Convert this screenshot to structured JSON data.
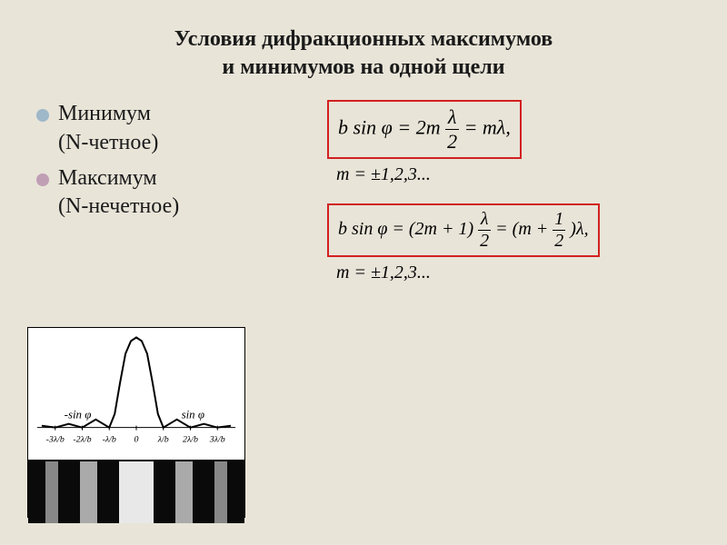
{
  "title": {
    "line1": "Условия дифракционных максимумов",
    "line2": "и минимумов на одной щели",
    "fontsize": 24,
    "color": "#1a1a1a"
  },
  "bullets": [
    {
      "text1": "Минимум",
      "text2": "(N-четное)",
      "color": "#9fb8c9"
    },
    {
      "text1": "Максимум",
      "text2": "(N-нечетное)",
      "color": "#c09fb5"
    }
  ],
  "bullet_fontsize": 24,
  "formulas": {
    "box1": {
      "prefix": "b sin φ = 2m",
      "frac_num": "λ",
      "frac_den": "2",
      "suffix": " = mλ,",
      "border_color": "#d32020",
      "fontsize": 22
    },
    "m1": {
      "text": "m = ±1,2,3...",
      "fontsize": 20
    },
    "box2": {
      "prefix": "b sin φ = (2m + 1)",
      "frac1_num": "λ",
      "frac1_den": "2",
      "mid": " = (m + ",
      "frac2_num": "1",
      "frac2_den": "2",
      "suffix": ")λ,",
      "border_color": "#d32020",
      "fontsize": 20
    },
    "m2": {
      "text": "m = ±1,2,3...",
      "fontsize": 20
    }
  },
  "diagram": {
    "type": "line",
    "background_color": "#ffffff",
    "axis_labels_left": "-sin φ",
    "axis_labels_right": "sin φ",
    "x_ticks": [
      "-3λ/b",
      "-2λ/b",
      "-λ/b",
      "0",
      "λ/b",
      "2λ/b",
      "3λ/b"
    ],
    "curve_color": "#000000",
    "curve_width": 2,
    "sinc_points_x": [
      -3.5,
      -3,
      -2.5,
      -2,
      -1.5,
      -1,
      -0.8,
      -0.6,
      -0.4,
      -0.2,
      0,
      0.2,
      0.4,
      0.6,
      0.8,
      1,
      1.5,
      2,
      2.5,
      3,
      3.5
    ],
    "sinc_points_y": [
      0.02,
      0,
      0.04,
      0,
      0.09,
      0,
      0.15,
      0.5,
      0.82,
      0.96,
      1,
      0.96,
      0.82,
      0.5,
      0.15,
      0,
      0.09,
      0,
      0.04,
      0,
      0.02
    ],
    "pattern": {
      "stripes": [
        {
          "w": 0.08,
          "c": "#0a0a0a"
        },
        {
          "w": 0.06,
          "c": "#888888"
        },
        {
          "w": 0.1,
          "c": "#0a0a0a"
        },
        {
          "w": 0.08,
          "c": "#aaaaaa"
        },
        {
          "w": 0.1,
          "c": "#0a0a0a"
        },
        {
          "w": 0.16,
          "c": "#e8e8e8"
        },
        {
          "w": 0.1,
          "c": "#0a0a0a"
        },
        {
          "w": 0.08,
          "c": "#aaaaaa"
        },
        {
          "w": 0.1,
          "c": "#0a0a0a"
        },
        {
          "w": 0.06,
          "c": "#888888"
        },
        {
          "w": 0.08,
          "c": "#0a0a0a"
        }
      ]
    }
  }
}
